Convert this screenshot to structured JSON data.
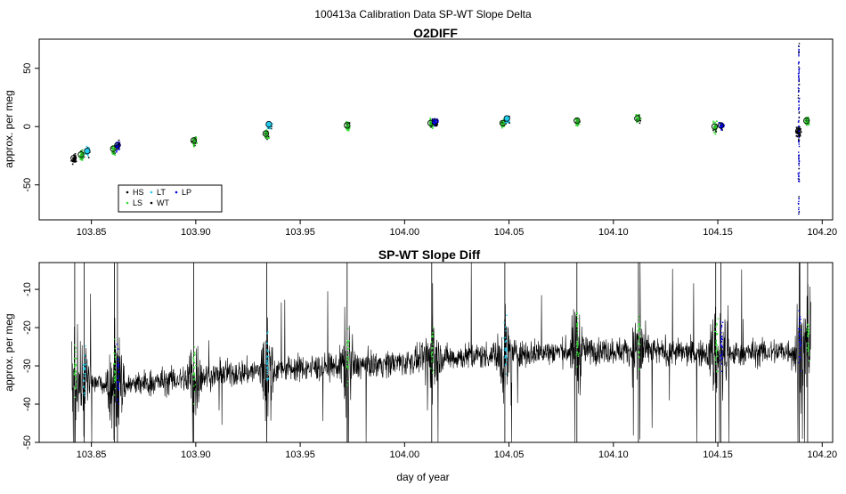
{
  "figure": {
    "title": "100413a   Calibration Data SP-WT Slope Delta",
    "xlabel": "day of year"
  },
  "colors": {
    "HS": "#000000",
    "LS": "#33dd33",
    "LT": "#22ccee",
    "WT": "#000000",
    "LP": "#0000ee",
    "trace": "#000000"
  },
  "chart_data": [
    {
      "type": "scatter",
      "title": "O2DIFF",
      "ylabel": "approx. per meg",
      "xlim": [
        103.825,
        104.205
      ],
      "ylim": [
        -80,
        75
      ],
      "xticks": [
        103.85,
        103.9,
        103.95,
        104.0,
        104.05,
        104.1,
        104.15,
        104.2
      ],
      "xtick_labels": [
        "103.85",
        "103.90",
        "103.95",
        "104.00",
        "104.05",
        "104.10",
        "104.15",
        "104.20"
      ],
      "yticks": [
        50,
        0,
        -50
      ],
      "ytick_labels": [
        "50",
        "0",
        "-50"
      ],
      "legend": {
        "position": "bottom-left",
        "entries": [
          {
            "name": "HS",
            "color": "#000000"
          },
          {
            "name": "LT",
            "color": "#22ccee"
          },
          {
            "name": "LP",
            "color": "#0000ee"
          },
          {
            "name": "LS",
            "color": "#33dd33"
          },
          {
            "name": "WT",
            "color": "#000000"
          }
        ]
      },
      "groups": [
        {
          "x": 103.8415,
          "y": -27,
          "type": "WT"
        },
        {
          "x": 103.845,
          "y": -24,
          "type": "LS"
        },
        {
          "x": 103.848,
          "y": -21,
          "type": "LT"
        },
        {
          "x": 103.8605,
          "y": -19,
          "type": "LS"
        },
        {
          "x": 103.8625,
          "y": -16,
          "type": "LP"
        },
        {
          "x": 103.899,
          "y": -12,
          "type": "LS"
        },
        {
          "x": 103.9335,
          "y": -6,
          "type": "LS"
        },
        {
          "x": 103.935,
          "y": 2,
          "type": "LT"
        },
        {
          "x": 103.9725,
          "y": 1,
          "type": "LS"
        },
        {
          "x": 104.0125,
          "y": 3,
          "type": "LS"
        },
        {
          "x": 104.0145,
          "y": 4,
          "type": "LP"
        },
        {
          "x": 104.047,
          "y": 3,
          "type": "LS"
        },
        {
          "x": 104.049,
          "y": 7,
          "type": "LT"
        },
        {
          "x": 104.0825,
          "y": 5,
          "type": "LS"
        },
        {
          "x": 104.1115,
          "y": 7,
          "type": "LS"
        },
        {
          "x": 104.1485,
          "y": 0,
          "type": "LS"
        },
        {
          "x": 104.1515,
          "y": 1,
          "type": "LP"
        },
        {
          "x": 104.1885,
          "y": -4,
          "type": "WT"
        },
        {
          "x": 104.1925,
          "y": 5,
          "type": "LS"
        }
      ]
    },
    {
      "type": "line",
      "title": "SP-WT Slope Diff",
      "ylabel": "approx. per meg",
      "xlim": [
        103.825,
        104.205
      ],
      "ylim": [
        -50,
        -3
      ],
      "xticks": [
        103.85,
        103.9,
        103.95,
        104.0,
        104.05,
        104.1,
        104.15,
        104.2
      ],
      "xtick_labels": [
        "103.85",
        "103.90",
        "103.95",
        "104.00",
        "104.05",
        "104.10",
        "104.15",
        "104.20"
      ],
      "yticks": [
        -10,
        -20,
        -30,
        -40,
        -50
      ],
      "ytick_labels": [
        "-10",
        "-20",
        "-30",
        "-40",
        "-50"
      ],
      "baseline_segments": [
        {
          "x": 103.84,
          "y": -34
        },
        {
          "x": 103.87,
          "y": -35
        },
        {
          "x": 103.9,
          "y": -33
        },
        {
          "x": 103.935,
          "y": -31
        },
        {
          "x": 103.975,
          "y": -30
        },
        {
          "x": 104.0,
          "y": -29
        },
        {
          "x": 104.014,
          "y": -28
        },
        {
          "x": 104.048,
          "y": -27
        },
        {
          "x": 104.082,
          "y": -26
        },
        {
          "x": 104.112,
          "y": -26
        },
        {
          "x": 104.15,
          "y": -27
        },
        {
          "x": 104.188,
          "y": -26
        },
        {
          "x": 104.194,
          "y": -25
        }
      ],
      "calibration_times": [
        103.842,
        103.8465,
        103.861,
        103.8625,
        103.899,
        103.934,
        103.9725,
        104.013,
        104.048,
        104.0825,
        104.112,
        104.149,
        104.1515,
        104.189,
        104.193
      ]
    }
  ]
}
